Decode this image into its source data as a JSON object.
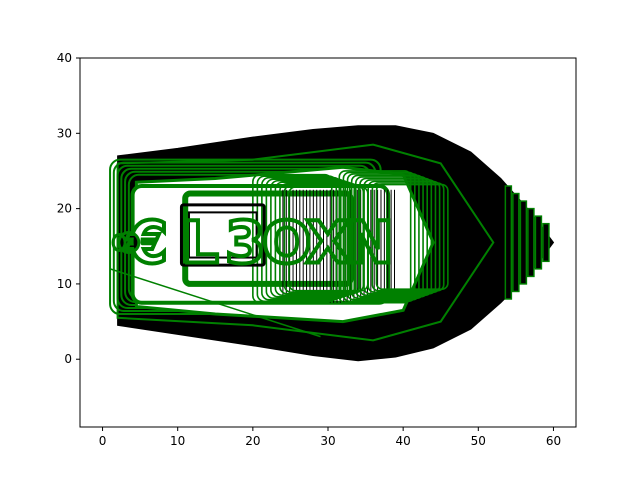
{
  "chart_data": {
    "type": "line",
    "title": "",
    "xlabel": "",
    "ylabel": "",
    "xlim": [
      -3,
      63
    ],
    "ylim": [
      -9,
      40
    ],
    "grid": false,
    "x_ticks": [
      0,
      10,
      20,
      30,
      40,
      50,
      60
    ],
    "y_ticks": [
      0,
      10,
      20,
      30,
      40
    ],
    "colors": {
      "dark": "#000000",
      "accent": "#008000",
      "fill": "#ffffff"
    },
    "series": [
      {
        "color": "#000000",
        "kind": "hull-outer-filled",
        "x": [
          2,
          10,
          20,
          28,
          34,
          39,
          44,
          49,
          53,
          57,
          60,
          57,
          53,
          49,
          44,
          39,
          34,
          28,
          20,
          10,
          2
        ],
        "y": [
          27,
          28,
          29.5,
          30.5,
          31,
          31,
          30,
          27.5,
          24,
          19.5,
          15.5,
          11.5,
          7.5,
          4,
          1.5,
          0.3,
          -0.2,
          0.5,
          1.8,
          3.3,
          4.5
        ]
      },
      {
        "color": "#008000",
        "kind": "cockpit-frame",
        "x": [
          2,
          20,
          36,
          45,
          52,
          45,
          36,
          20,
          2,
          2
        ],
        "y": [
          26,
          26.5,
          28.5,
          26,
          15.5,
          5,
          2.5,
          4.5,
          5.5,
          26
        ]
      },
      {
        "color": "#008000",
        "kind": "inner-seat-frame",
        "x": [
          4.5,
          15,
          32,
          40,
          44,
          40,
          32,
          15,
          4.5,
          4.5
        ],
        "y": [
          23.5,
          24,
          25.5,
          24.5,
          15.5,
          6.5,
          5,
          6,
          7,
          23.5
        ]
      },
      {
        "color": "#008000",
        "kind": "diagonal-line",
        "x": [
          1,
          29
        ],
        "y": [
          12,
          3
        ]
      },
      {
        "color": "#008000",
        "kind": "bow-ribs",
        "x": [
          54,
          55,
          56,
          57,
          58,
          59
        ],
        "y": [
          15.5,
          15.5,
          15.5,
          15.5,
          15.5,
          15.5
        ],
        "half_heights": [
          7.5,
          6.5,
          5.5,
          4.5,
          3.5,
          2.5
        ]
      },
      {
        "color": "#000000",
        "kind": "stern-panel",
        "x": [
          10.5,
          21.5
        ],
        "y": [
          12.5,
          20.5
        ]
      },
      {
        "color": "#008000",
        "kind": "lettering",
        "text": "€L3OXN",
        "x": [
          6,
          13,
          19,
          24.5,
          30,
          35.5
        ],
        "y": 15.5
      }
    ]
  }
}
